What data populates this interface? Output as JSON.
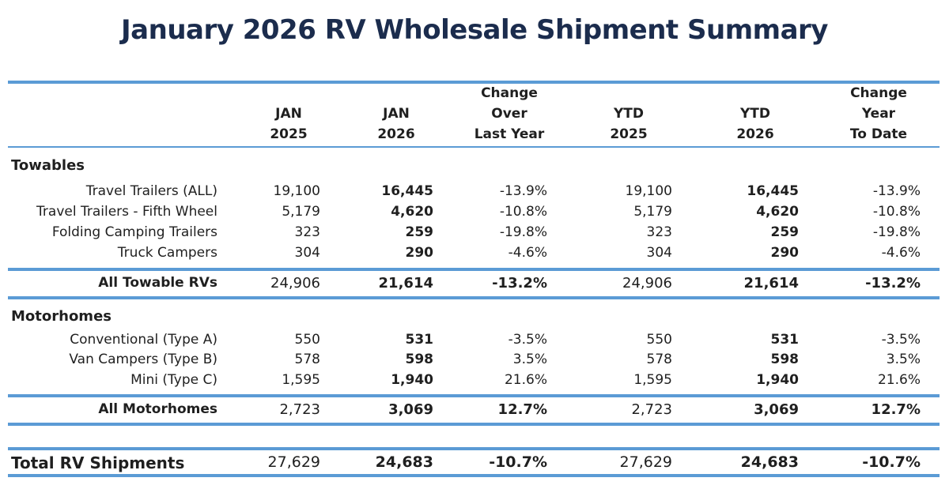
{
  "title": "January 2026 RV Wholesale Shipment Summary",
  "colors": {
    "title": "#1b2c4d",
    "rule": "#5b9bd5"
  },
  "headers": [
    [
      "JAN",
      "2025"
    ],
    [
      "JAN",
      "2026"
    ],
    [
      "Change",
      "Over",
      "Last Year"
    ],
    [
      "YTD",
      "2025"
    ],
    [
      "YTD",
      "2026"
    ],
    [
      "Change",
      "Year",
      "To Date"
    ]
  ],
  "towables": {
    "heading": "Towables",
    "rows": [
      {
        "label": "Travel Trailers (ALL)",
        "jan2025": "19,100",
        "jan2026": "16,445",
        "chg": "-13.9%",
        "ytd2025": "19,100",
        "ytd2026": "16,445",
        "ytdchg": "-13.9%"
      },
      {
        "label": "Travel Trailers - Fifth Wheel",
        "jan2025": "5,179",
        "jan2026": "4,620",
        "chg": "-10.8%",
        "ytd2025": "5,179",
        "ytd2026": "4,620",
        "ytdchg": "-10.8%"
      },
      {
        "label": "Folding Camping Trailers",
        "jan2025": "323",
        "jan2026": "259",
        "chg": "-19.8%",
        "ytd2025": "323",
        "ytd2026": "259",
        "ytdchg": "-19.8%"
      },
      {
        "label": "Truck Campers",
        "jan2025": "304",
        "jan2026": "290",
        "chg": "-4.6%",
        "ytd2025": "304",
        "ytd2026": "290",
        "ytdchg": "-4.6%"
      }
    ],
    "total": {
      "label": "All Towable RVs",
      "jan2025": "24,906",
      "jan2026": "21,614",
      "chg": "-13.2%",
      "ytd2025": "24,906",
      "ytd2026": "21,614",
      "ytdchg": "-13.2%"
    }
  },
  "motorhomes": {
    "heading": "Motorhomes",
    "rows": [
      {
        "label": "Conventional (Type A)",
        "jan2025": "550",
        "jan2026": "531",
        "chg": "-3.5%",
        "ytd2025": "550",
        "ytd2026": "531",
        "ytdchg": "-3.5%"
      },
      {
        "label": "Van Campers (Type B)",
        "jan2025": "578",
        "jan2026": "598",
        "chg": "3.5%",
        "ytd2025": "578",
        "ytd2026": "598",
        "ytdchg": "3.5%"
      },
      {
        "label": "Mini (Type C)",
        "jan2025": "1,595",
        "jan2026": "1,940",
        "chg": "21.6%",
        "ytd2025": "1,595",
        "ytd2026": "1,940",
        "ytdchg": "21.6%"
      }
    ],
    "total": {
      "label": "All Motorhomes",
      "jan2025": "2,723",
      "jan2026": "3,069",
      "chg": "12.7%",
      "ytd2025": "2,723",
      "ytd2026": "3,069",
      "ytdchg": "12.7%"
    }
  },
  "grand_total": {
    "label": "Total RV Shipments",
    "jan2025": "27,629",
    "jan2026": "24,683",
    "chg": "-10.7%",
    "ytd2025": "27,629",
    "ytd2026": "24,683",
    "ytdchg": "-10.7%"
  }
}
